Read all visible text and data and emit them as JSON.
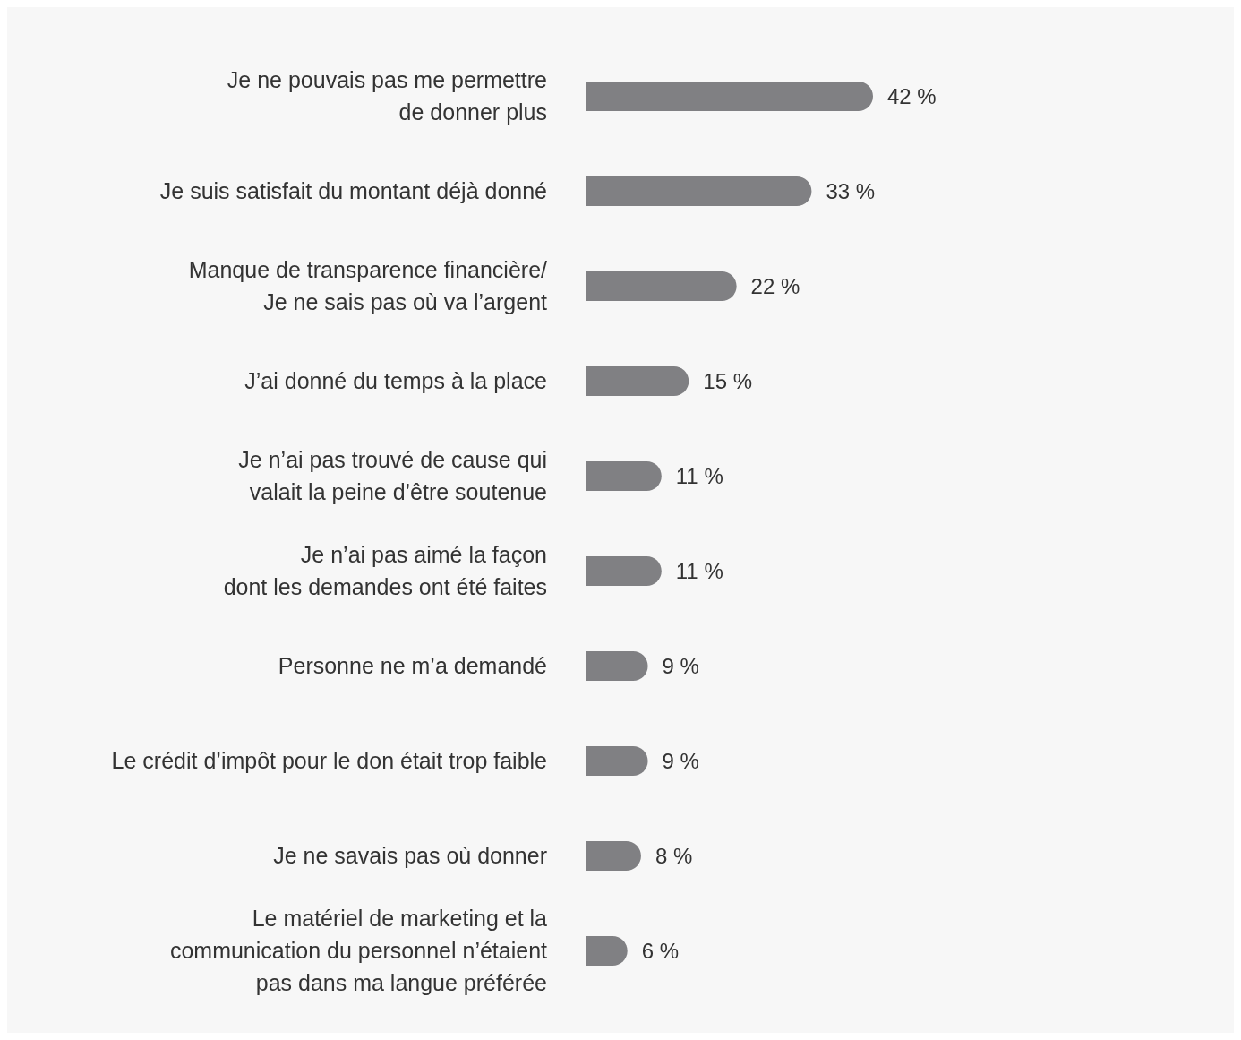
{
  "chart_data": {
    "type": "bar",
    "orientation": "horizontal",
    "categories": [
      "Je ne pouvais pas me permettre\nde donner plus",
      "Je suis satisfait du montant déjà donné",
      "Manque de transparence financière/\nJe ne sais pas où va l’argent",
      "J’ai donné du temps à la place",
      "Je n’ai pas trouvé de cause qui\nvalait la peine d’être soutenue",
      "Je n’ai pas aimé la façon\ndont les demandes ont été faites",
      "Personne ne m’a demandé",
      "Le crédit d’impôt pour le don était trop faible",
      "Je ne savais pas où donner",
      "Le matériel de marketing et la\ncommunication du personnel n’étaient\npas dans ma langue préférée"
    ],
    "values": [
      42,
      33,
      22,
      15,
      11,
      11,
      9,
      9,
      8,
      6
    ],
    "value_labels": [
      "42 %",
      "33 %",
      "22 %",
      "15 %",
      "11 %",
      "11 %",
      "9 %",
      "9 %",
      "8 %",
      "6 %"
    ],
    "color": "#808083",
    "grid": false,
    "legend": false
  }
}
